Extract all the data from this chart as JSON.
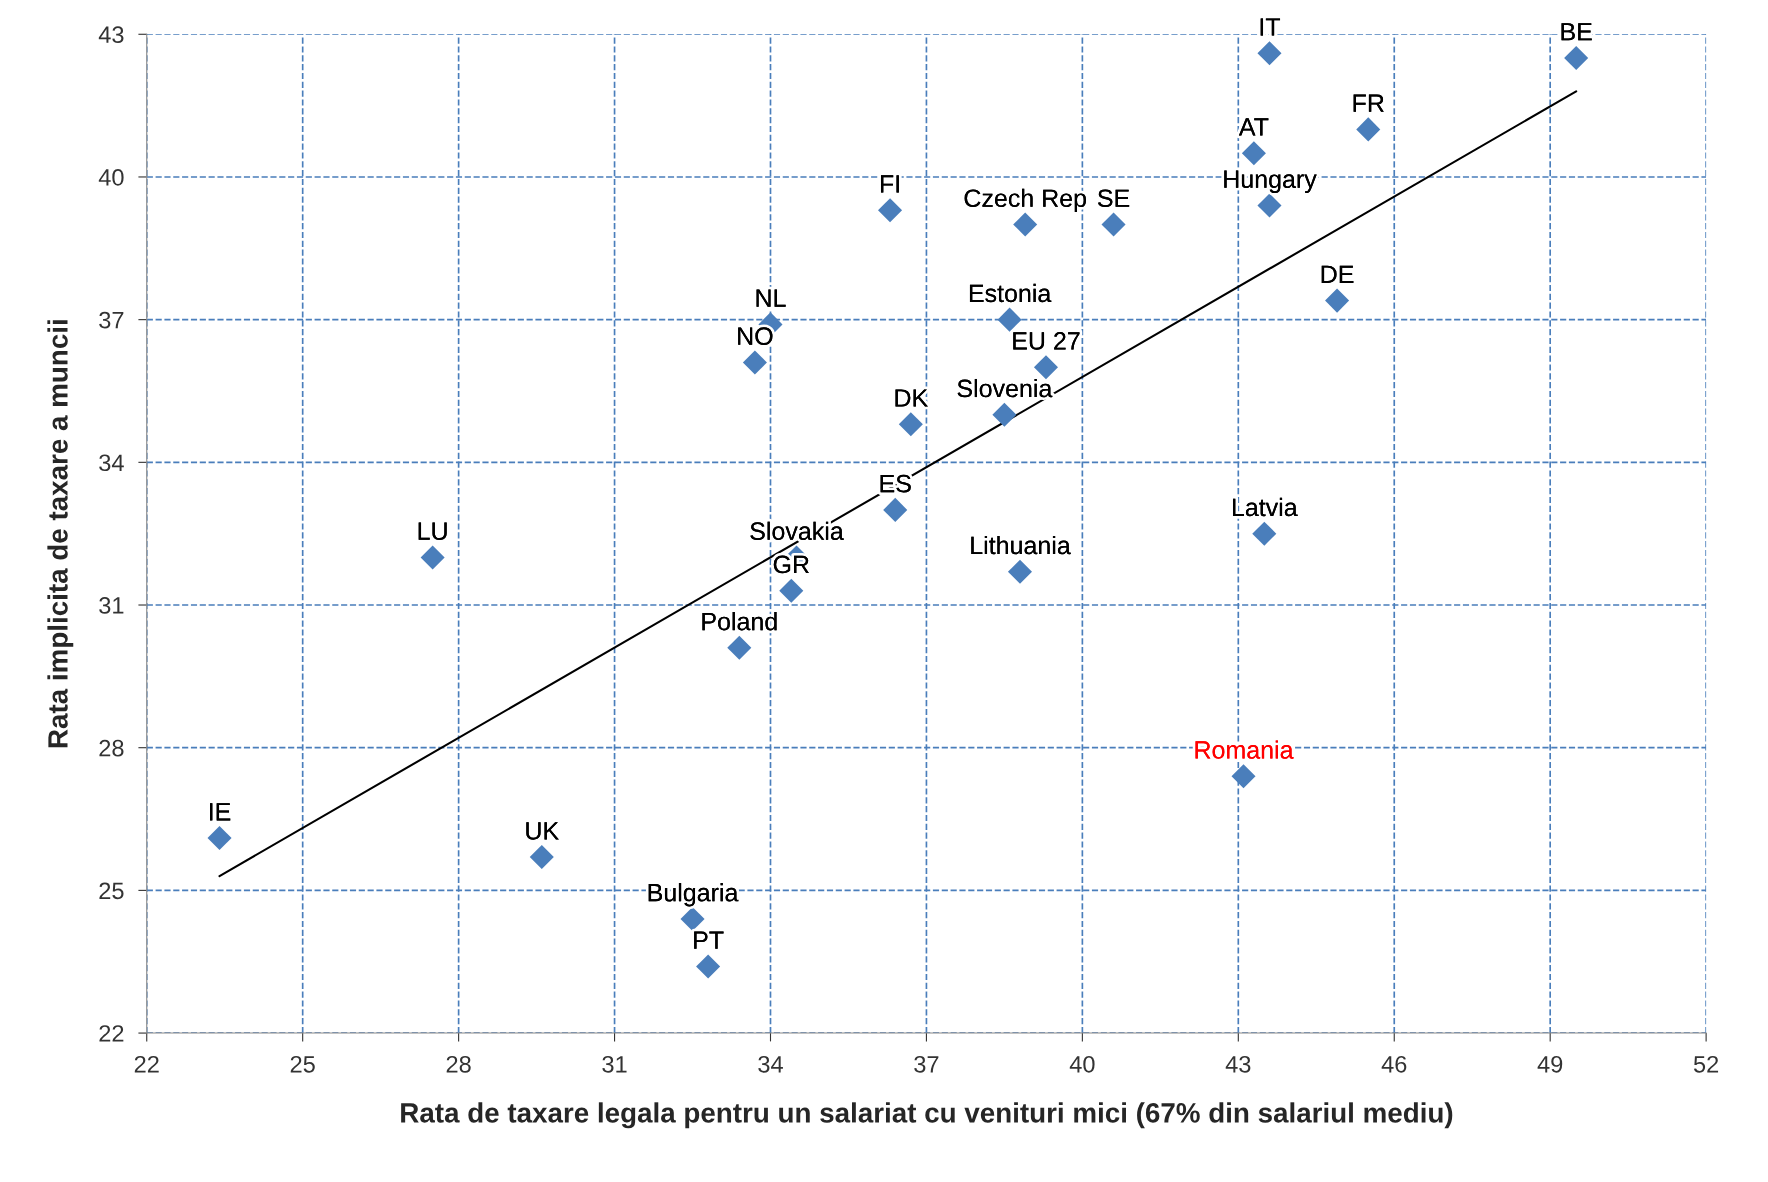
{
  "chart_data": {
    "type": "scatter",
    "xlabel": "Rata de taxare legala pentru un salariat cu venituri mici (67% din salariul mediu)",
    "ylabel": "Rata implicita de taxare a muncii",
    "xlim": [
      22,
      52
    ],
    "xticks": [
      22,
      25,
      28,
      31,
      34,
      37,
      40,
      43,
      46,
      49,
      52
    ],
    "ylim": [
      22,
      43
    ],
    "yticks": [
      22,
      25,
      28,
      31,
      34,
      37,
      40,
      43
    ],
    "grid": true,
    "series": [
      {
        "color": "#4a7ebb",
        "marker": "diamond",
        "x": [
          43.6,
          49.5,
          45.5,
          43.3,
          43.6,
          36.3,
          38.9,
          40.6,
          44.9,
          34.0,
          38.6,
          33.7,
          39.3,
          38.5,
          36.7,
          36.4,
          27.5,
          43.5,
          34.5,
          34.4,
          38.8,
          33.4,
          23.4,
          29.6,
          32.5,
          32.8
        ],
        "values": [
          42.6,
          42.5,
          41.0,
          40.5,
          39.4,
          39.3,
          39.0,
          39.0,
          37.4,
          36.9,
          37.0,
          36.1,
          36.0,
          35.0,
          34.8,
          33.0,
          32.0,
          32.5,
          32.0,
          31.3,
          31.7,
          30.1,
          26.1,
          25.7,
          24.4,
          23.4
        ],
        "value_labels": [
          "IT",
          "BE",
          "FR",
          "AT",
          "Hungary",
          "FI",
          "Czech Rep",
          "SE",
          "DE",
          "NL",
          "Estonia",
          "NO",
          "EU 27",
          "Slovenia",
          "DK",
          "ES",
          "LU",
          "Latvia",
          "Slovakia",
          "GR",
          "Lithuania",
          "Poland",
          "IE",
          "UK",
          "Bulgaria",
          "PT"
        ]
      },
      {
        "name": "Romania",
        "color": "#ff0000",
        "colors": [
          "#4a7ebb"
        ],
        "marker": "diamond",
        "x": [
          43.1
        ],
        "values": [
          27.4
        ]
      },
      {
        "type": "line",
        "color": "#000000",
        "line_style": "solid",
        "marker": "none",
        "x": [
          23.4,
          49.5
        ],
        "values": [
          25.3,
          41.8
        ]
      }
    ]
  }
}
